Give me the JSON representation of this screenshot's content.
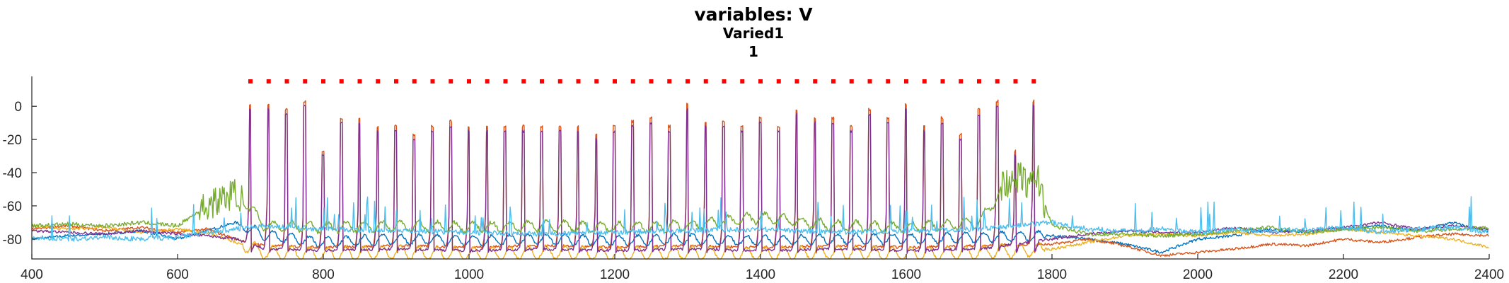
{
  "chart_data": {
    "type": "line",
    "title": "variables: V",
    "subtitle": "Varied1",
    "subtitle2": "1",
    "xlabel": "",
    "ylabel": "",
    "xlim": [
      400,
      2400
    ],
    "ylim": [
      -92,
      18
    ],
    "xticks": [
      400,
      600,
      800,
      1000,
      1200,
      1400,
      1600,
      1800,
      2000,
      2200,
      2400
    ],
    "xtick_labels": [
      "400",
      "600",
      "800",
      "1000",
      "1200",
      "1400",
      "1600",
      "1800",
      "2000",
      "2200",
      "2400"
    ],
    "yticks": [
      -80,
      -60,
      -40,
      -20,
      0
    ],
    "ytick_labels": [
      "-80",
      "-60",
      "-40",
      "-20",
      "0"
    ],
    "grid": false,
    "burst": {
      "spike_times": [
        700,
        725,
        750,
        775,
        800,
        825,
        850,
        875,
        900,
        925,
        950,
        975,
        1000,
        1025,
        1050,
        1075,
        1100,
        1125,
        1150,
        1175,
        1200,
        1225,
        1250,
        1275,
        1300,
        1325,
        1350,
        1375,
        1400,
        1425,
        1450,
        1475,
        1500,
        1525,
        1550,
        1575,
        1600,
        1625,
        1650,
        1675,
        1700,
        1725,
        1750,
        1775
      ],
      "peak_purple": [
        -2,
        -2,
        -5,
        0,
        -30,
        -10,
        -10,
        -15,
        -15,
        -20,
        -15,
        -12,
        -15,
        -15,
        -15,
        -15,
        -15,
        -15,
        -15,
        -20,
        -15,
        -12,
        -10,
        -15,
        -2,
        -12,
        -12,
        -15,
        -10,
        -15,
        -5,
        -10,
        -10,
        -15,
        -5,
        -10,
        -2,
        -15,
        -10,
        -20,
        -5,
        0,
        -30,
        0
      ]
    },
    "raster_marker_y": 15,
    "raster_marker_color": "#ff0000",
    "series": [
      {
        "color": "#0072bd",
        "points": [
          [
            400,
            -80
          ],
          [
            450,
            -78
          ],
          [
            500,
            -77
          ],
          [
            550,
            -75
          ],
          [
            600,
            -80
          ],
          [
            640,
            -75
          ],
          [
            680,
            -70
          ],
          [
            720,
            -78
          ],
          [
            800,
            -82
          ],
          [
            900,
            -80
          ],
          [
            1000,
            -81
          ],
          [
            1100,
            -80
          ],
          [
            1200,
            -81
          ],
          [
            1300,
            -80
          ],
          [
            1400,
            -81
          ],
          [
            1500,
            -80
          ],
          [
            1600,
            -80
          ],
          [
            1700,
            -79
          ],
          [
            1800,
            -78
          ],
          [
            1850,
            -80
          ],
          [
            1900,
            -83
          ],
          [
            1950,
            -88
          ],
          [
            2000,
            -80
          ],
          [
            2050,
            -78
          ],
          [
            2100,
            -74
          ],
          [
            2150,
            -76
          ],
          [
            2200,
            -74
          ],
          [
            2250,
            -72
          ],
          [
            2300,
            -75
          ],
          [
            2350,
            -70
          ],
          [
            2400,
            -76
          ]
        ]
      },
      {
        "color": "#d95319",
        "points": [
          [
            400,
            -74
          ],
          [
            450,
            -72
          ],
          [
            500,
            -75
          ],
          [
            550,
            -73
          ],
          [
            600,
            -76
          ],
          [
            640,
            -74
          ],
          [
            680,
            -80
          ],
          [
            720,
            -84
          ],
          [
            800,
            -85
          ],
          [
            900,
            -84
          ],
          [
            1000,
            -85
          ],
          [
            1100,
            -84
          ],
          [
            1200,
            -85
          ],
          [
            1300,
            -84
          ],
          [
            1400,
            -85
          ],
          [
            1500,
            -84
          ],
          [
            1600,
            -85
          ],
          [
            1700,
            -84
          ],
          [
            1800,
            -83
          ],
          [
            1850,
            -80
          ],
          [
            1900,
            -84
          ],
          [
            1950,
            -90
          ],
          [
            2000,
            -88
          ],
          [
            2050,
            -86
          ],
          [
            2100,
            -83
          ],
          [
            2150,
            -84
          ],
          [
            2200,
            -80
          ],
          [
            2250,
            -82
          ],
          [
            2300,
            -79
          ],
          [
            2350,
            -77
          ],
          [
            2400,
            -78
          ]
        ]
      },
      {
        "color": "#edb120",
        "points": [
          [
            400,
            -72
          ],
          [
            450,
            -74
          ],
          [
            500,
            -73
          ],
          [
            550,
            -76
          ],
          [
            600,
            -74
          ],
          [
            640,
            -76
          ],
          [
            680,
            -82
          ],
          [
            720,
            -88
          ],
          [
            800,
            -89
          ],
          [
            900,
            -88
          ],
          [
            1000,
            -89
          ],
          [
            1100,
            -88
          ],
          [
            1200,
            -89
          ],
          [
            1300,
            -88
          ],
          [
            1400,
            -89
          ],
          [
            1500,
            -88
          ],
          [
            1600,
            -89
          ],
          [
            1700,
            -88
          ],
          [
            1800,
            -86
          ],
          [
            1850,
            -82
          ],
          [
            1900,
            -78
          ],
          [
            1950,
            -77
          ],
          [
            2000,
            -78
          ],
          [
            2050,
            -76
          ],
          [
            2100,
            -78
          ],
          [
            2150,
            -77
          ],
          [
            2200,
            -74
          ],
          [
            2250,
            -76
          ],
          [
            2300,
            -78
          ],
          [
            2350,
            -80
          ],
          [
            2400,
            -85
          ]
        ]
      },
      {
        "color": "#7e2f8e",
        "points": [
          [
            400,
            -75
          ],
          [
            450,
            -76
          ],
          [
            500,
            -77
          ],
          [
            550,
            -75
          ],
          [
            600,
            -77
          ],
          [
            640,
            -78
          ],
          [
            680,
            -80
          ],
          [
            720,
            -86
          ],
          [
            800,
            -87
          ],
          [
            900,
            -86
          ],
          [
            1000,
            -87
          ],
          [
            1100,
            -86
          ],
          [
            1200,
            -87
          ],
          [
            1300,
            -86
          ],
          [
            1400,
            -87
          ],
          [
            1500,
            -86
          ],
          [
            1600,
            -87
          ],
          [
            1700,
            -86
          ],
          [
            1800,
            -80
          ],
          [
            1850,
            -77
          ],
          [
            1900,
            -75
          ],
          [
            1950,
            -76
          ],
          [
            2000,
            -76
          ],
          [
            2050,
            -73
          ],
          [
            2100,
            -76
          ],
          [
            2150,
            -75
          ],
          [
            2200,
            -73
          ],
          [
            2250,
            -70
          ],
          [
            2300,
            -74
          ],
          [
            2350,
            -72
          ],
          [
            2400,
            -74
          ]
        ]
      },
      {
        "color": "#77ac30",
        "points": [
          [
            400,
            -72
          ],
          [
            450,
            -71
          ],
          [
            500,
            -72
          ],
          [
            550,
            -70
          ],
          [
            600,
            -72
          ],
          [
            640,
            -60
          ],
          [
            680,
            -52
          ],
          [
            720,
            -72
          ],
          [
            800,
            -73
          ],
          [
            900,
            -72
          ],
          [
            1000,
            -73
          ],
          [
            1100,
            -72
          ],
          [
            1200,
            -73
          ],
          [
            1300,
            -72
          ],
          [
            1400,
            -67
          ],
          [
            1500,
            -72
          ],
          [
            1600,
            -73
          ],
          [
            1700,
            -70
          ],
          [
            1740,
            -45
          ],
          [
            1780,
            -45
          ],
          [
            1800,
            -72
          ],
          [
            1850,
            -77
          ],
          [
            1900,
            -77
          ],
          [
            1950,
            -78
          ],
          [
            2000,
            -77
          ],
          [
            2050,
            -75
          ],
          [
            2100,
            -73
          ],
          [
            2150,
            -76
          ],
          [
            2200,
            -74
          ],
          [
            2250,
            -73
          ],
          [
            2300,
            -75
          ],
          [
            2350,
            -74
          ],
          [
            2400,
            -73
          ]
        ]
      },
      {
        "color": "#4dbeee",
        "points": [
          [
            400,
            -79
          ],
          [
            450,
            -80
          ],
          [
            500,
            -79
          ],
          [
            550,
            -80
          ],
          [
            600,
            -79
          ],
          [
            640,
            -76
          ],
          [
            680,
            -74
          ],
          [
            720,
            -72
          ],
          [
            800,
            -74
          ],
          [
            900,
            -75
          ],
          [
            1000,
            -76
          ],
          [
            1100,
            -77
          ],
          [
            1200,
            -76
          ],
          [
            1300,
            -75
          ],
          [
            1400,
            -74
          ],
          [
            1500,
            -76
          ],
          [
            1600,
            -75
          ],
          [
            1700,
            -74
          ],
          [
            1800,
            -70
          ],
          [
            1850,
            -74
          ],
          [
            1900,
            -75
          ],
          [
            1950,
            -74
          ],
          [
            2000,
            -76
          ],
          [
            2050,
            -74
          ],
          [
            2100,
            -75
          ],
          [
            2150,
            -74
          ],
          [
            2200,
            -73
          ],
          [
            2250,
            -76
          ],
          [
            2300,
            -74
          ],
          [
            2350,
            -73
          ],
          [
            2400,
            -76
          ]
        ]
      }
    ]
  }
}
